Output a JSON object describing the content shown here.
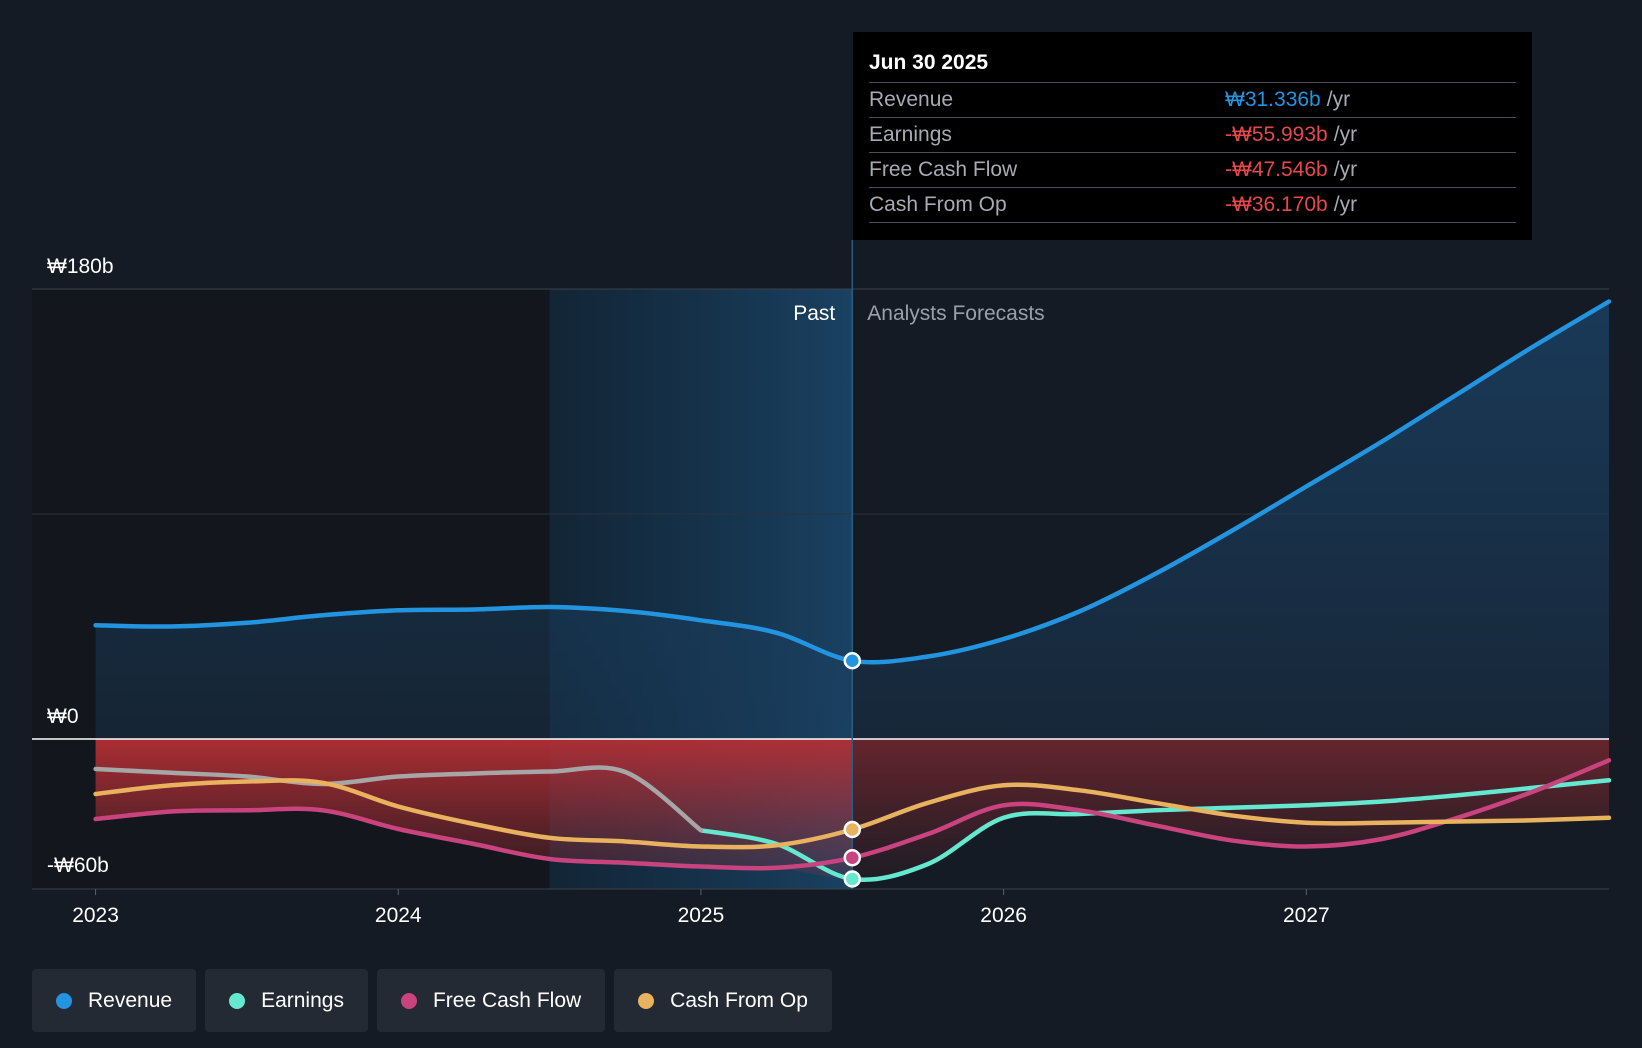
{
  "chart_data": {
    "type": "area",
    "title": "",
    "currency_symbol": "₩",
    "x_ticks": [
      {
        "label": "2023",
        "t": 2023.0
      },
      {
        "label": "2024",
        "t": 2024.0
      },
      {
        "label": "2025",
        "t": 2025.0
      },
      {
        "label": "2026",
        "t": 2026.0
      },
      {
        "label": "2027",
        "t": 2027.0
      }
    ],
    "xlim": [
      2022.79,
      2028.0
    ],
    "y_labels": [
      {
        "label": "₩180b",
        "value": 180
      },
      {
        "label": "₩0",
        "value": 0
      },
      {
        "label": "-₩60b",
        "value": -60
      }
    ],
    "ylim": [
      -60,
      180
    ],
    "units": "billion KRW per year",
    "highlight_start": 2024.5,
    "past_end": 2025.5,
    "past_label": "Past",
    "forecast_label": "Analysts Forecasts",
    "series": [
      {
        "name": "Revenue",
        "color": "#2394df",
        "fill": true,
        "points": [
          [
            2023.0,
            45.5
          ],
          [
            2023.25,
            45.0
          ],
          [
            2023.5,
            46.5
          ],
          [
            2023.75,
            49.5
          ],
          [
            2024.0,
            51.5
          ],
          [
            2024.25,
            51.8
          ],
          [
            2024.5,
            52.8
          ],
          [
            2024.75,
            51.2
          ],
          [
            2025.0,
            47.5
          ],
          [
            2025.25,
            42.5
          ],
          [
            2025.5,
            31.3
          ],
          [
            2025.75,
            33.0
          ],
          [
            2026.0,
            40.0
          ],
          [
            2026.25,
            51.0
          ],
          [
            2026.5,
            66.0
          ],
          [
            2026.75,
            83.0
          ],
          [
            2027.0,
            101.0
          ],
          [
            2027.25,
            119.0
          ],
          [
            2027.5,
            138.0
          ],
          [
            2027.75,
            157.0
          ],
          [
            2028.0,
            175.0
          ]
        ]
      },
      {
        "name": "Earnings",
        "color": "#64e8cf",
        "past_color": "#a6a6a6",
        "points": [
          [
            2023.0,
            -12.0
          ],
          [
            2023.25,
            -13.5
          ],
          [
            2023.5,
            -15.0
          ],
          [
            2023.75,
            -18.0
          ],
          [
            2024.0,
            -15.0
          ],
          [
            2024.25,
            -13.8
          ],
          [
            2024.5,
            -13.0
          ],
          [
            2024.75,
            -13.2
          ],
          [
            2025.0,
            -36.5
          ],
          [
            2025.25,
            -42.0
          ],
          [
            2025.5,
            -56.0
          ],
          [
            2025.75,
            -50.0
          ],
          [
            2026.0,
            -31.5
          ],
          [
            2026.25,
            -30.0
          ],
          [
            2026.5,
            -28.5
          ],
          [
            2026.75,
            -27.5
          ],
          [
            2027.0,
            -26.5
          ],
          [
            2027.25,
            -25.0
          ],
          [
            2027.5,
            -22.5
          ],
          [
            2027.75,
            -19.5
          ],
          [
            2028.0,
            -16.5
          ]
        ]
      },
      {
        "name": "Free Cash Flow",
        "color": "#c9437e",
        "points": [
          [
            2023.0,
            -32.0
          ],
          [
            2023.25,
            -29.0
          ],
          [
            2023.5,
            -28.5
          ],
          [
            2023.75,
            -28.5
          ],
          [
            2024.0,
            -36.0
          ],
          [
            2024.25,
            -42.0
          ],
          [
            2024.5,
            -48.0
          ],
          [
            2024.75,
            -49.5
          ],
          [
            2025.0,
            -51.0
          ],
          [
            2025.25,
            -51.5
          ],
          [
            2025.5,
            -47.5
          ],
          [
            2025.75,
            -38.0
          ],
          [
            2026.0,
            -26.5
          ],
          [
            2026.25,
            -28.5
          ],
          [
            2026.5,
            -34.5
          ],
          [
            2026.75,
            -40.5
          ],
          [
            2027.0,
            -43.0
          ],
          [
            2027.25,
            -40.0
          ],
          [
            2027.5,
            -31.5
          ],
          [
            2027.75,
            -21.0
          ],
          [
            2028.0,
            -8.5
          ]
        ]
      },
      {
        "name": "Cash From Op",
        "color": "#e9b25e",
        "points": [
          [
            2023.0,
            -22.0
          ],
          [
            2023.25,
            -18.5
          ],
          [
            2023.5,
            -17.0
          ],
          [
            2023.75,
            -17.5
          ],
          [
            2024.0,
            -27.0
          ],
          [
            2024.25,
            -34.0
          ],
          [
            2024.5,
            -39.5
          ],
          [
            2024.75,
            -41.0
          ],
          [
            2025.0,
            -43.0
          ],
          [
            2025.25,
            -42.5
          ],
          [
            2025.5,
            -36.2
          ],
          [
            2025.75,
            -25.5
          ],
          [
            2026.0,
            -18.5
          ],
          [
            2026.25,
            -20.5
          ],
          [
            2026.5,
            -25.5
          ],
          [
            2026.75,
            -30.5
          ],
          [
            2027.0,
            -33.5
          ],
          [
            2027.25,
            -33.5
          ],
          [
            2027.5,
            -33.0
          ],
          [
            2027.75,
            -32.5
          ],
          [
            2028.0,
            -31.5
          ]
        ]
      }
    ]
  },
  "tooltip": {
    "date": "Jun 30 2025",
    "rows": [
      {
        "name": "Revenue",
        "value": "₩31.336b",
        "unit": "/yr",
        "color": "#2394df"
      },
      {
        "name": "Earnings",
        "value": "-₩55.993b",
        "unit": "/yr",
        "color": "#e5484d"
      },
      {
        "name": "Free Cash Flow",
        "value": "-₩47.546b",
        "unit": "/yr",
        "color": "#e5484d"
      },
      {
        "name": "Cash From Op",
        "value": "-₩36.170b",
        "unit": "/yr",
        "color": "#e5484d"
      }
    ]
  },
  "legend": [
    {
      "label": "Revenue",
      "color": "#2394df"
    },
    {
      "label": "Earnings",
      "color": "#64e8cf"
    },
    {
      "label": "Free Cash Flow",
      "color": "#c9437e"
    },
    {
      "label": "Cash From Op",
      "color": "#e9b25e"
    }
  ]
}
